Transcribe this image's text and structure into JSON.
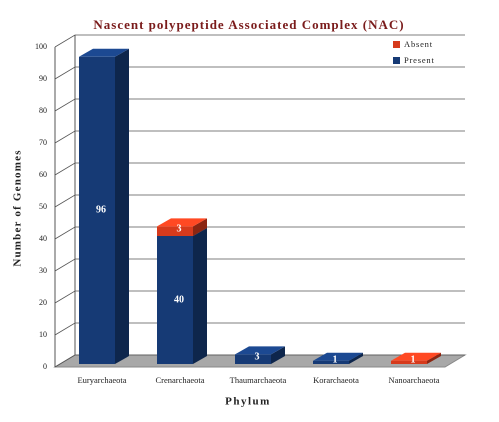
{
  "chart_data": {
    "type": "bar3d-stacked",
    "title": "Nascent polypeptide Associated Complex (NAC)",
    "x_label": "Phylum",
    "y_label": "Number of Genomes",
    "categories": [
      "Euryarchaeota",
      "Crenarchaeota",
      "Thaumarchaeota",
      "Korarchaeota",
      "Nanoarchaeota"
    ],
    "series": [
      {
        "name": "Absent",
        "color": "#d63a1c",
        "values": [
          0,
          3,
          0,
          0,
          1
        ]
      },
      {
        "name": "Present",
        "color": "#163a75",
        "values": [
          96,
          40,
          3,
          1,
          0
        ]
      }
    ],
    "ylim": [
      0,
      100
    ],
    "yticks": [
      0,
      10,
      20,
      30,
      40,
      50,
      60,
      70,
      80,
      90,
      100
    ],
    "grid": true,
    "legend": "top-right"
  }
}
